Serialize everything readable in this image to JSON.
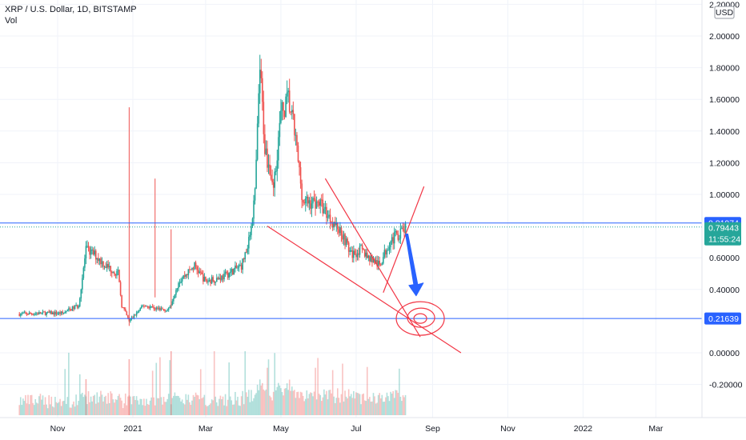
{
  "header": {
    "symbol_line": "XRP / U.S. Dollar, 1D, BITSTAMP",
    "indicator": "Vol"
  },
  "price_axis": {
    "currency_badge": "USD",
    "ticks": [
      "2.20000",
      "2.00000",
      "1.80000",
      "1.60000",
      "1.40000",
      "1.20000",
      "1.00000",
      "0.60000",
      "0.40000",
      "0.00000",
      "-0.20000"
    ]
  },
  "price_tags": {
    "upper_level": "0.81974",
    "current_price": "0.79443",
    "countdown": "11:55:24",
    "lower_level": "0.21639"
  },
  "time_axis": {
    "labels": [
      "Nov",
      "2021",
      "Mar",
      "May",
      "Jul",
      "Sep",
      "Nov",
      "2022",
      "Mar"
    ]
  },
  "colors": {
    "up": "#26a69a",
    "down": "#ef5350",
    "horizontal_level": "#2962ff",
    "current_price": "#26a69a",
    "trendline": "#f23645",
    "arrow": "#2962ff"
  },
  "chart_data": {
    "type": "candlestick",
    "title": "XRP / U.S. Dollar, 1D, BITSTAMP",
    "y_unit": "USD",
    "ylim": [
      -0.3,
      2.2
    ],
    "x_start": "2020-10-01",
    "x_end": "2022-04-20",
    "grid": true,
    "price_path": [
      [
        "2020-10-01",
        0.245
      ],
      [
        "2020-10-20",
        0.25
      ],
      [
        "2020-11-05",
        0.25
      ],
      [
        "2020-11-18",
        0.3
      ],
      [
        "2020-11-24",
        0.65
      ],
      [
        "2020-12-01",
        0.62
      ],
      [
        "2020-12-10",
        0.55
      ],
      [
        "2020-12-20",
        0.5
      ],
      [
        "2020-12-23",
        0.3
      ],
      [
        "2020-12-29",
        0.2
      ],
      [
        "2021-01-10",
        0.3
      ],
      [
        "2021-01-20",
        0.28
      ],
      [
        "2021-01-30",
        0.27
      ],
      [
        "2021-02-07",
        0.45
      ],
      [
        "2021-02-20",
        0.55
      ],
      [
        "2021-03-01",
        0.45
      ],
      [
        "2021-03-15",
        0.48
      ],
      [
        "2021-03-30",
        0.55
      ],
      [
        "2021-04-05",
        0.7
      ],
      [
        "2021-04-10",
        1.0
      ],
      [
        "2021-04-14",
        1.8
      ],
      [
        "2021-04-18",
        1.3
      ],
      [
        "2021-04-25",
        1.05
      ],
      [
        "2021-05-01",
        1.5
      ],
      [
        "2021-05-07",
        1.6
      ],
      [
        "2021-05-12",
        1.4
      ],
      [
        "2021-05-19",
        0.95
      ],
      [
        "2021-05-25",
        0.95
      ],
      [
        "2021-06-01",
        0.95
      ],
      [
        "2021-06-10",
        0.85
      ],
      [
        "2021-06-20",
        0.75
      ],
      [
        "2021-06-27",
        0.62
      ],
      [
        "2021-07-05",
        0.65
      ],
      [
        "2021-07-12",
        0.6
      ],
      [
        "2021-07-20",
        0.55
      ],
      [
        "2021-07-28",
        0.7
      ],
      [
        "2021-08-04",
        0.75
      ],
      [
        "2021-08-10",
        0.78
      ]
    ],
    "volume_note": "volume bars drawn beneath price; values not labeled",
    "levels": [
      {
        "value": 0.81974
      },
      {
        "value": 0.79443
      },
      {
        "value": 0.21639
      }
    ],
    "annotations": {
      "descending_wedge_line": [
        [
          "2021-04-20",
          0.8
        ],
        [
          "2021-09-24",
          0.0
        ]
      ],
      "wedge_upper_line": [
        [
          "2021-06-06",
          1.1
        ],
        [
          "2021-08-22",
          0.1
        ]
      ],
      "breakout_line": [
        [
          "2021-07-23",
          0.38
        ],
        [
          "2021-08-25",
          1.05
        ]
      ],
      "target_point": [
        "2021-08-22",
        0.21639
      ]
    }
  }
}
